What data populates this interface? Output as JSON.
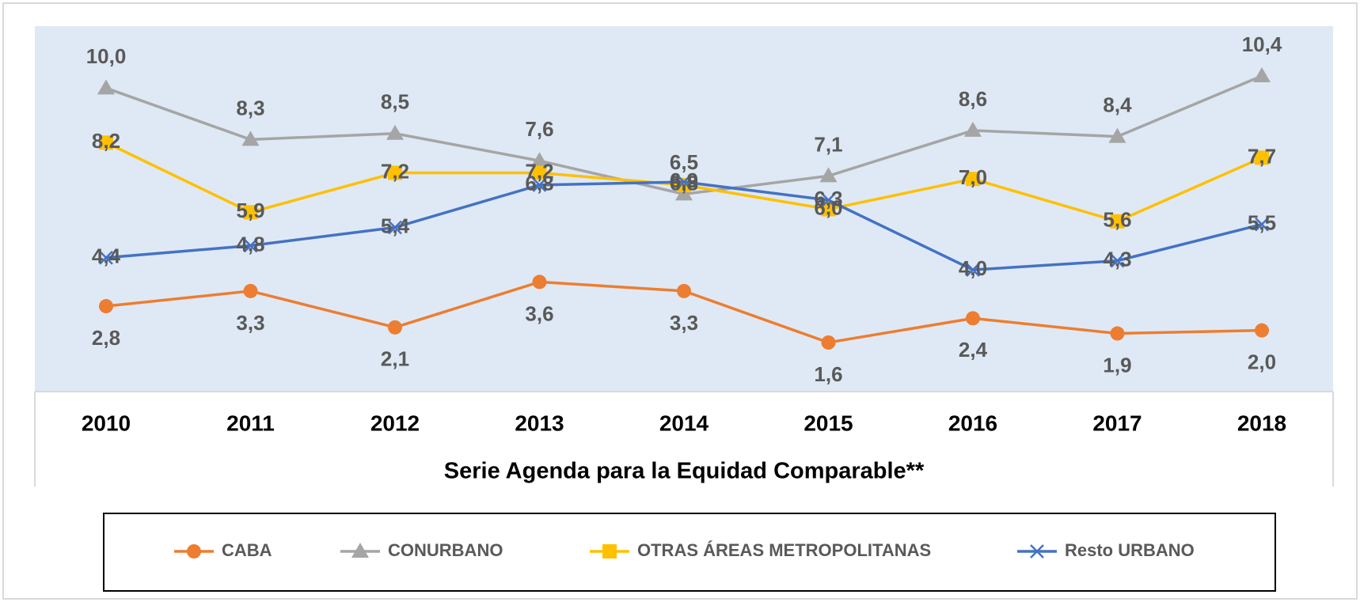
{
  "chart_data": {
    "type": "line",
    "title": "Serie Agenda para la Equidad Comparable**",
    "categories": [
      "2010",
      "2011",
      "2012",
      "2013",
      "2014",
      "2015",
      "2016",
      "2017",
      "2018"
    ],
    "legend": "bottom",
    "series": [
      {
        "name": "CABA",
        "color": "#ed7d31",
        "marker": "circle",
        "values": [
          2.8,
          3.3,
          2.1,
          3.6,
          3.3,
          1.6,
          2.4,
          1.9,
          2.0
        ],
        "value_labels": [
          "2,8",
          "3,3",
          "2,1",
          "3,6",
          "3,3",
          "1,6",
          "2,4",
          "1,9",
          "2,0"
        ]
      },
      {
        "name": "CONURBANO",
        "color": "#a5a5a5",
        "marker": "triangle",
        "values": [
          10.0,
          8.3,
          8.5,
          7.6,
          6.5,
          7.1,
          8.6,
          8.4,
          10.4
        ],
        "value_labels": [
          "10,0",
          "8,3",
          "8,5",
          "7,6",
          "6,5",
          "7,1",
          "8,6",
          "8,4",
          "10,4"
        ]
      },
      {
        "name": "OTRAS ÁREAS METROPOLITANAS",
        "color": "#ffc000",
        "marker": "square",
        "values": [
          8.2,
          5.9,
          7.2,
          7.2,
          6.8,
          6.0,
          7.0,
          5.6,
          7.7
        ],
        "value_labels": [
          "8,2",
          "5,9",
          "7,2",
          "7,2",
          "6,8",
          "6,0",
          "7,0",
          "5,6",
          "7,7"
        ]
      },
      {
        "name": "Resto URBANO",
        "color": "#4472c4",
        "marker": "x",
        "values": [
          4.4,
          4.8,
          5.4,
          6.8,
          6.9,
          6.3,
          4.0,
          4.3,
          5.5
        ],
        "value_labels": [
          "4,4",
          "4,8",
          "5,4",
          "6,8",
          "6,9",
          "6,3",
          "4,0",
          "4,3",
          "5,5"
        ]
      }
    ]
  }
}
